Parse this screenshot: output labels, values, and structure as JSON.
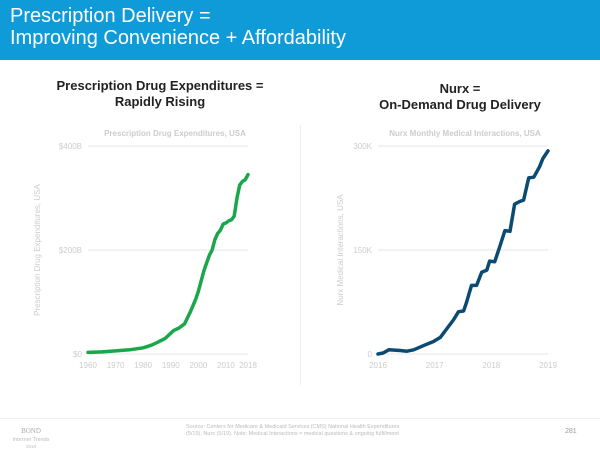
{
  "header": {
    "line1": "Prescription Delivery =",
    "line2": "Improving Convenience + Affordability"
  },
  "left": {
    "heading1": "Prescription Drug Expenditures =",
    "heading2": "Rapidly Rising"
  },
  "right": {
    "heading1": "Nurx =",
    "heading2": "On-Demand Drug Delivery"
  },
  "footer": {
    "brand": "BOND",
    "subtitle": "Internet Trends",
    "year": "2019",
    "source1": "Source: Centers for Medicare & Medicaid Services (CMS) National Health Expenditures",
    "source2": "(5/19), Nurx (5/19). Note: Medical Interactions = medical questions & ongoing fulfillment",
    "page": "281"
  },
  "chart_data": [
    {
      "type": "line",
      "title": "Prescription Drug Expenditures, USA",
      "ylabel": "Prescription Drug Expenditures, USA",
      "xlabel": "",
      "color": "#1aa64a",
      "xlim": [
        1960,
        2018
      ],
      "ylim": [
        0,
        400
      ],
      "yticks": [
        {
          "v": 0,
          "label": "$0"
        },
        {
          "v": 200,
          "label": "$200B"
        },
        {
          "v": 400,
          "label": "$400B"
        }
      ],
      "xticks": [
        {
          "v": 1960,
          "label": "1960"
        },
        {
          "v": 1970,
          "label": "1970"
        },
        {
          "v": 1980,
          "label": "1980"
        },
        {
          "v": 1990,
          "label": "1990"
        },
        {
          "v": 2000,
          "label": "2000"
        },
        {
          "v": 2010,
          "label": "2010"
        },
        {
          "v": 2018,
          "label": "2018"
        }
      ],
      "x": [
        1960,
        1965,
        1970,
        1975,
        1980,
        1983,
        1985,
        1988,
        1990,
        1991,
        1993,
        1995,
        1997,
        1999,
        2000,
        2002,
        2003,
        2004,
        2005,
        2006,
        2007,
        2008,
        2009,
        2010,
        2011,
        2012,
        2013,
        2014,
        2015,
        2016,
        2017,
        2018
      ],
      "y": [
        3,
        4,
        6,
        8,
        12,
        17,
        22,
        30,
        40,
        45,
        50,
        58,
        80,
        105,
        120,
        160,
        175,
        190,
        200,
        220,
        232,
        238,
        250,
        252,
        256,
        258,
        265,
        300,
        325,
        332,
        335,
        345
      ]
    },
    {
      "type": "line",
      "title": "Nurx Monthly Medical Interactions, USA",
      "ylabel": "Nurx Medical Interactions, USA",
      "xlabel": "",
      "color": "#0b4a73",
      "xlim": [
        2016,
        2019
      ],
      "ylim": [
        0,
        300
      ],
      "yticks": [
        {
          "v": 0,
          "label": "0"
        },
        {
          "v": 150,
          "label": "150K"
        },
        {
          "v": 300,
          "label": "300K"
        }
      ],
      "xticks": [
        {
          "v": 2016,
          "label": "2016"
        },
        {
          "v": 2017,
          "label": "2017"
        },
        {
          "v": 2018,
          "label": "2018"
        },
        {
          "v": 2019,
          "label": "2019"
        }
      ],
      "x": [
        2016.0,
        2016.09,
        2016.19,
        2016.39,
        2016.51,
        2016.63,
        2016.8,
        2016.98,
        2017.1,
        2017.21,
        2017.33,
        2017.42,
        2017.51,
        2017.56,
        2017.65,
        2017.74,
        2017.83,
        2017.92,
        2017.97,
        2018.06,
        2018.15,
        2018.24,
        2018.33,
        2018.41,
        2018.5,
        2018.57,
        2018.66,
        2018.75,
        2018.85,
        2018.91,
        2019.0
      ],
      "y": [
        0,
        1.5,
        6,
        5,
        4,
        6,
        12,
        18,
        24,
        36,
        49,
        61,
        62,
        74,
        99,
        99,
        118,
        121,
        134,
        133,
        155,
        178,
        177,
        216,
        220,
        222,
        254,
        255,
        270,
        282,
        293
      ]
    }
  ]
}
